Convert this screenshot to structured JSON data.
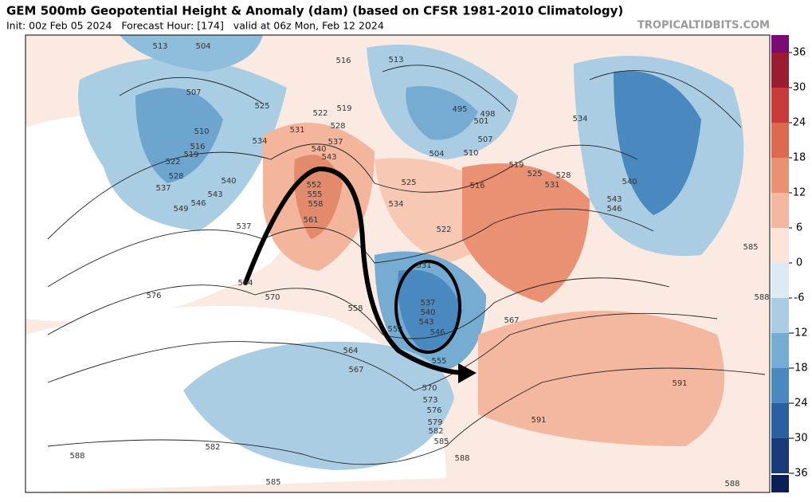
{
  "header": {
    "title": "GEM 500mb Geopotential Height & Anomaly (dam) (based on CFSR 1981-2010 Climatology)",
    "subtitle": "Init: 00z Feb 05 2024   Forecast Hour: [174]   valid at 06z Mon, Feb 12 2024",
    "watermark": "TROPICALTIDBITS.COM"
  },
  "colorbar": {
    "ticks": [
      36,
      30,
      24,
      18,
      12,
      6,
      0,
      -6,
      -12,
      -18,
      -24,
      -30,
      -36
    ],
    "colors": [
      "#9b1b30",
      "#c93a3a",
      "#dd6a50",
      "#ea9174",
      "#f4b8a0",
      "#fde4d8",
      "#dbeaf3",
      "#aacde3",
      "#76acd2",
      "#4a88c0",
      "#2a5fa0",
      "#183a78"
    ]
  },
  "contour_labels": [
    "513",
    "504",
    "507",
    "510",
    "516",
    "519",
    "522",
    "528",
    "537",
    "540",
    "543",
    "546",
    "549",
    "537",
    "525",
    "531",
    "528",
    "537",
    "540",
    "534",
    "543",
    "552",
    "555",
    "558",
    "561",
    "516",
    "513",
    "519",
    "522",
    "495",
    "498",
    "501",
    "504",
    "507",
    "510",
    "516",
    "519",
    "525",
    "528",
    "531",
    "534",
    "525",
    "534",
    "522",
    "540",
    "543",
    "546",
    "585",
    "588",
    "564",
    "570",
    "576",
    "558",
    "531",
    "537",
    "540",
    "543",
    "546",
    "552",
    "555",
    "564",
    "567",
    "570",
    "573",
    "576",
    "579",
    "582",
    "585",
    "588",
    "567",
    "591",
    "591",
    "588",
    "582",
    "585",
    "588"
  ]
}
